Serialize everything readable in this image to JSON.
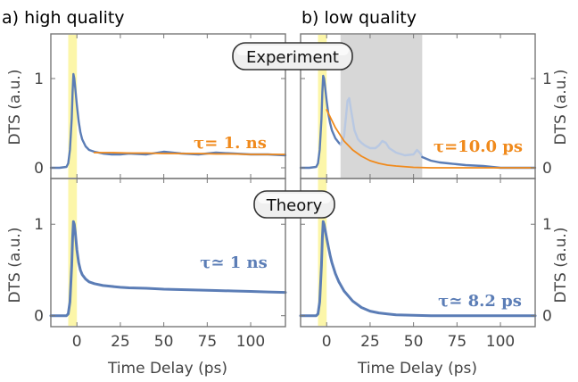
{
  "figure": {
    "panel_a_title": "a) high quality",
    "panel_b_title": "b) low quality",
    "badge_experiment": "Experiment",
    "badge_theory": "Theory",
    "xlabel": "Time Delay (ps)",
    "ylabel": "DTS (a.u.)"
  },
  "colors": {
    "data_blue": "#5b7db6",
    "data_blue_faint": "#b8c8e2",
    "fit_orange": "#f08a1c",
    "pump_yellow": "#fbf59a",
    "shade_gray": "#d7d7d7",
    "frame": "#777777"
  },
  "chart_data": [
    {
      "id": "a-experiment",
      "type": "line",
      "xlim": [
        -15,
        120
      ],
      "ylim": [
        -0.12,
        1.5
      ],
      "xticks": [
        0,
        25,
        50,
        75,
        100
      ],
      "yticks": [
        0,
        1
      ],
      "pump_window": [
        -5,
        0
      ],
      "annotation": "τ= 1. ns",
      "series": [
        {
          "role": "measured",
          "x": [
            -15,
            -10,
            -6,
            -5,
            -4,
            -3,
            -2.5,
            -2,
            -1.5,
            -1,
            0,
            1,
            2,
            3,
            5,
            7,
            10,
            15,
            20,
            25,
            30,
            40,
            50,
            60,
            70,
            80,
            90,
            100,
            110,
            120
          ],
          "y": [
            0,
            0,
            0.01,
            0.05,
            0.2,
            0.55,
            0.85,
            1.05,
            1.0,
            0.9,
            0.7,
            0.52,
            0.4,
            0.32,
            0.24,
            0.2,
            0.18,
            0.16,
            0.15,
            0.15,
            0.16,
            0.15,
            0.18,
            0.16,
            0.15,
            0.17,
            0.16,
            0.15,
            0.15,
            0.14
          ]
        },
        {
          "role": "fit",
          "x": [
            10,
            20,
            30,
            40,
            50,
            60,
            70,
            80,
            90,
            100,
            110,
            120
          ],
          "y": [
            0.17,
            0.17,
            0.165,
            0.165,
            0.16,
            0.16,
            0.16,
            0.155,
            0.155,
            0.15,
            0.15,
            0.15
          ]
        }
      ]
    },
    {
      "id": "b-experiment",
      "type": "line",
      "xlim": [
        -15,
        120
      ],
      "ylim": [
        -0.12,
        1.5
      ],
      "xticks": [
        0,
        25,
        50,
        75,
        100
      ],
      "yticks": [
        0,
        1
      ],
      "pump_window": [
        -5,
        0
      ],
      "shaded_region": [
        8,
        55
      ],
      "annotation": "τ=10.0 ps",
      "series": [
        {
          "role": "measured",
          "x": [
            -15,
            -10,
            -6,
            -5,
            -4,
            -3,
            -2.5,
            -2,
            -1.5,
            -1,
            0,
            1,
            2,
            3,
            5,
            7,
            8
          ],
          "y": [
            0,
            0,
            0.01,
            0.05,
            0.2,
            0.55,
            0.85,
            1.03,
            1.0,
            0.92,
            0.75,
            0.6,
            0.5,
            0.42,
            0.33,
            0.28,
            0.26
          ]
        },
        {
          "role": "measured_masked",
          "x": [
            8,
            10,
            11,
            12,
            13,
            14,
            16,
            18,
            20,
            22,
            25,
            28,
            30,
            32,
            34,
            36,
            40,
            45,
            50,
            52,
            54,
            55
          ],
          "y": [
            0.26,
            0.35,
            0.55,
            0.75,
            0.78,
            0.65,
            0.42,
            0.32,
            0.28,
            0.25,
            0.22,
            0.22,
            0.25,
            0.3,
            0.28,
            0.22,
            0.17,
            0.14,
            0.15,
            0.2,
            0.16,
            0.12
          ]
        },
        {
          "role": "measured",
          "x": [
            55,
            60,
            65,
            70,
            75,
            80,
            90,
            100,
            110,
            120
          ],
          "y": [
            0.12,
            0.08,
            0.06,
            0.05,
            0.04,
            0.03,
            0.02,
            0.0,
            0.0,
            0.0
          ]
        },
        {
          "role": "fit",
          "x": [
            0,
            5,
            10,
            15,
            20,
            25,
            30,
            35,
            40,
            50,
            60,
            70,
            80,
            90,
            100,
            110,
            120
          ],
          "y": [
            0.65,
            0.45,
            0.3,
            0.2,
            0.13,
            0.08,
            0.05,
            0.03,
            0.02,
            0.005,
            0.0,
            0.0,
            0.0,
            0.0,
            0.0,
            0.0,
            0.0
          ]
        }
      ]
    },
    {
      "id": "a-theory",
      "type": "line",
      "xlim": [
        -15,
        120
      ],
      "ylim": [
        -0.12,
        1.5
      ],
      "xticks": [
        0,
        25,
        50,
        75,
        100
      ],
      "yticks": [
        0,
        1
      ],
      "pump_window": [
        -5,
        0
      ],
      "annotation": "τ≃ 1 ns",
      "series": [
        {
          "role": "theory",
          "x": [
            -15,
            -8,
            -6,
            -5,
            -4,
            -3,
            -2.5,
            -2,
            -1.5,
            -1,
            0,
            1,
            2,
            3,
            5,
            7,
            10,
            15,
            20,
            25,
            30,
            40,
            50,
            60,
            70,
            80,
            90,
            100,
            110,
            120
          ],
          "y": [
            0,
            0,
            0,
            0.02,
            0.15,
            0.55,
            0.85,
            1.03,
            1.0,
            0.92,
            0.72,
            0.58,
            0.5,
            0.45,
            0.4,
            0.37,
            0.35,
            0.33,
            0.32,
            0.31,
            0.305,
            0.3,
            0.29,
            0.285,
            0.28,
            0.275,
            0.27,
            0.265,
            0.26,
            0.255
          ]
        }
      ]
    },
    {
      "id": "b-theory",
      "type": "line",
      "xlim": [
        -15,
        120
      ],
      "ylim": [
        -0.12,
        1.5
      ],
      "xticks": [
        0,
        25,
        50,
        75,
        100
      ],
      "yticks": [
        0,
        1
      ],
      "pump_window": [
        -5,
        0
      ],
      "annotation": "τ≃ 8.2 ps",
      "series": [
        {
          "role": "theory",
          "x": [
            -15,
            -8,
            -6,
            -5,
            -4,
            -3,
            -2.5,
            -2,
            -1.5,
            -1,
            0,
            1,
            2,
            3,
            5,
            7,
            10,
            15,
            20,
            25,
            30,
            35,
            40,
            50,
            60,
            80,
            100,
            120
          ],
          "y": [
            0,
            0,
            0,
            0.02,
            0.15,
            0.55,
            0.85,
            1.03,
            1.0,
            0.95,
            0.85,
            0.75,
            0.66,
            0.58,
            0.46,
            0.37,
            0.27,
            0.16,
            0.09,
            0.05,
            0.03,
            0.02,
            0.01,
            0.005,
            0.0,
            0.0,
            0.0,
            0.0
          ]
        }
      ]
    }
  ]
}
